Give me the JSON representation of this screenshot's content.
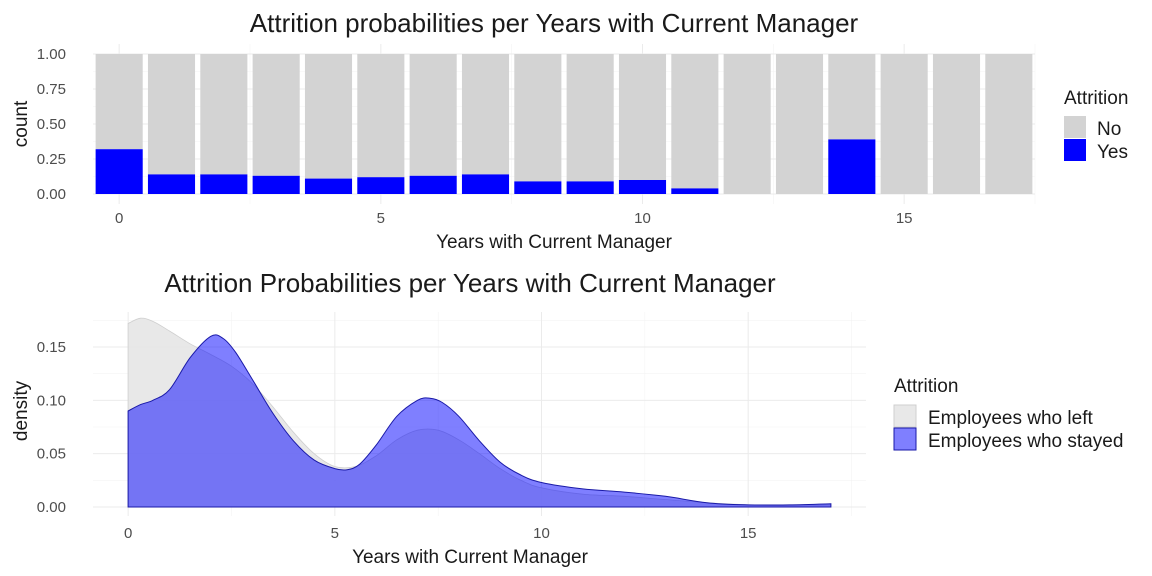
{
  "chart_data": [
    {
      "type": "bar",
      "stacked": true,
      "title": "Attrition probabilities per Years with Current Manager",
      "xlabel": "Years with Current Manager",
      "ylabel": "count",
      "x": [
        0,
        1,
        2,
        3,
        4,
        5,
        6,
        7,
        8,
        9,
        10,
        11,
        12,
        13,
        14,
        15,
        16,
        17
      ],
      "xticks": [
        0,
        5,
        10,
        15
      ],
      "yticks": [
        "0.00",
        "0.25",
        "0.50",
        "0.75",
        "1.00"
      ],
      "ylim": [
        0,
        1
      ],
      "series": [
        {
          "name": "Yes",
          "color": "#0000ff",
          "values": [
            0.32,
            0.14,
            0.14,
            0.13,
            0.11,
            0.12,
            0.13,
            0.14,
            0.09,
            0.09,
            0.1,
            0.04,
            0,
            0,
            0.39,
            0,
            0,
            0
          ]
        },
        {
          "name": "No",
          "color": "#d3d3d3",
          "values": [
            0.68,
            0.86,
            0.86,
            0.87,
            0.89,
            0.88,
            0.87,
            0.86,
            0.91,
            0.91,
            0.9,
            0.96,
            1,
            1,
            0.61,
            1,
            1,
            1
          ]
        }
      ],
      "legend": {
        "title": "Attrition",
        "position": "right"
      },
      "grid": true
    },
    {
      "type": "area",
      "title": "Attrition Probabilities per Years with Current Manager",
      "xlabel": "Years with Current Manager",
      "ylabel": "density",
      "xlim": [
        0,
        17
      ],
      "ylim": [
        0,
        0.18
      ],
      "xticks": [
        0,
        5,
        10,
        15
      ],
      "yticks": [
        "0.00",
        "0.05",
        "0.10",
        "0.15"
      ],
      "series": [
        {
          "name": "Employees who left",
          "color": "#e6e6e6",
          "x": [
            0,
            0.3,
            0.6,
            1,
            1.5,
            2,
            2.5,
            3,
            3.5,
            4,
            4.5,
            5,
            5.5,
            6,
            6.5,
            7,
            7.5,
            8,
            8.5,
            9,
            9.5,
            10,
            11,
            12,
            13,
            14,
            15,
            16,
            17
          ],
          "y": [
            0.172,
            0.177,
            0.174,
            0.165,
            0.153,
            0.143,
            0.132,
            0.116,
            0.094,
            0.07,
            0.05,
            0.038,
            0.038,
            0.048,
            0.063,
            0.072,
            0.072,
            0.063,
            0.05,
            0.036,
            0.025,
            0.018,
            0.012,
            0.01,
            0.007,
            0.004,
            0.002,
            0.001,
            0.002
          ]
        },
        {
          "name": "Employees who stayed",
          "color": "#0000ff",
          "x": [
            0,
            0.3,
            0.6,
            1,
            1.5,
            2,
            2.3,
            2.6,
            3,
            3.5,
            4,
            4.5,
            5,
            5.3,
            5.6,
            6,
            6.5,
            7,
            7.3,
            7.6,
            8,
            8.5,
            9,
            9.5,
            10,
            11,
            12,
            13,
            14,
            15,
            16,
            17
          ],
          "y": [
            0.09,
            0.096,
            0.1,
            0.11,
            0.14,
            0.16,
            0.158,
            0.145,
            0.12,
            0.088,
            0.062,
            0.044,
            0.036,
            0.035,
            0.04,
            0.058,
            0.085,
            0.1,
            0.102,
            0.098,
            0.085,
            0.062,
            0.042,
            0.03,
            0.023,
            0.017,
            0.014,
            0.01,
            0.004,
            0.002,
            0.002,
            0.003
          ]
        }
      ],
      "legend": {
        "title": "Attrition",
        "position": "right"
      },
      "grid": true
    }
  ]
}
